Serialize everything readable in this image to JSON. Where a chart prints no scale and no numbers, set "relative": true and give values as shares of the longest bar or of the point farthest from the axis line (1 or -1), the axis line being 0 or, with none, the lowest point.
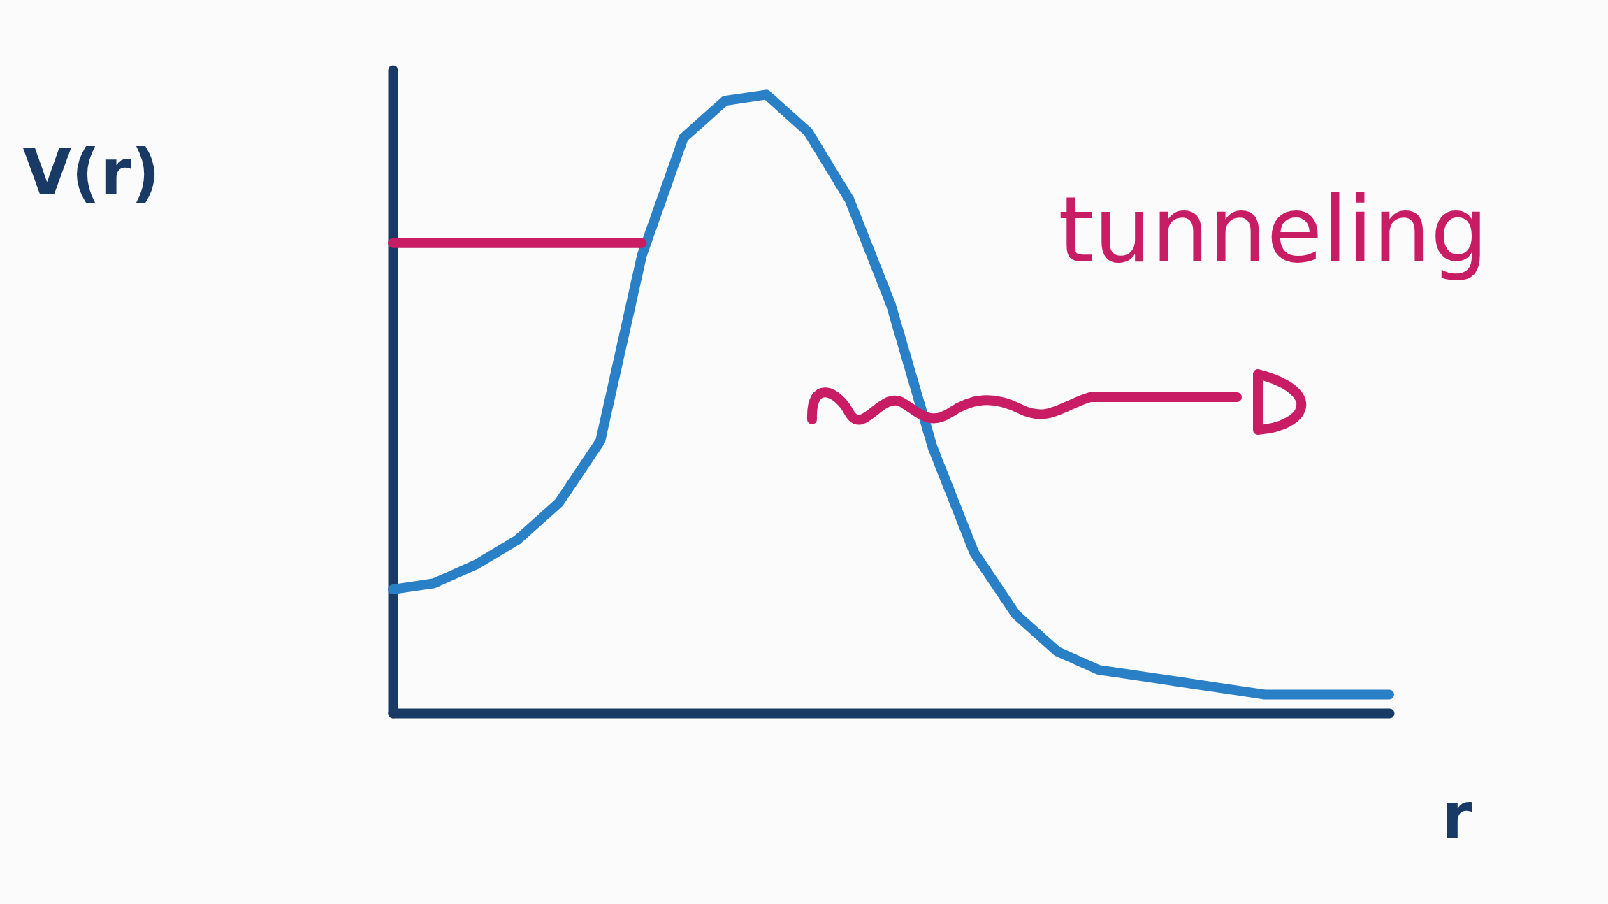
{
  "chart_data": {
    "type": "line",
    "relative": true,
    "xlabel": "r",
    "ylabel": "V(r)",
    "annotations": [
      "tunneling"
    ],
    "categories": [
      null,
      null,
      null,
      null,
      null,
      null,
      null,
      null,
      null,
      null,
      null,
      null,
      null,
      null,
      null,
      null,
      null,
      null,
      null,
      null,
      null,
      null,
      null,
      null,
      null
    ],
    "series": [
      {
        "color": "#2a80c6",
        "values": [
          0.2,
          0.21,
          0.24,
          0.28,
          0.34,
          0.44,
          0.74,
          0.93,
          0.99,
          1,
          0.94,
          0.83,
          0.66,
          0.43,
          0.26,
          0.16,
          0.1,
          0.07,
          0.06,
          0.05,
          0.04,
          0.03,
          0.03,
          0.03,
          0.03
        ]
      },
      {
        "color": "#c81d65",
        "values": [
          0.76,
          0.76,
          0.76,
          0.76,
          0.76,
          0.76,
          0.76,
          null,
          null,
          null,
          null,
          null,
          null,
          null,
          null,
          null,
          null,
          null,
          null,
          null,
          null,
          null,
          null,
          null,
          null
        ]
      }
    ],
    "marker": "none",
    "line_style": "solid",
    "legend": false,
    "grid": false,
    "tick_labels": false
  }
}
